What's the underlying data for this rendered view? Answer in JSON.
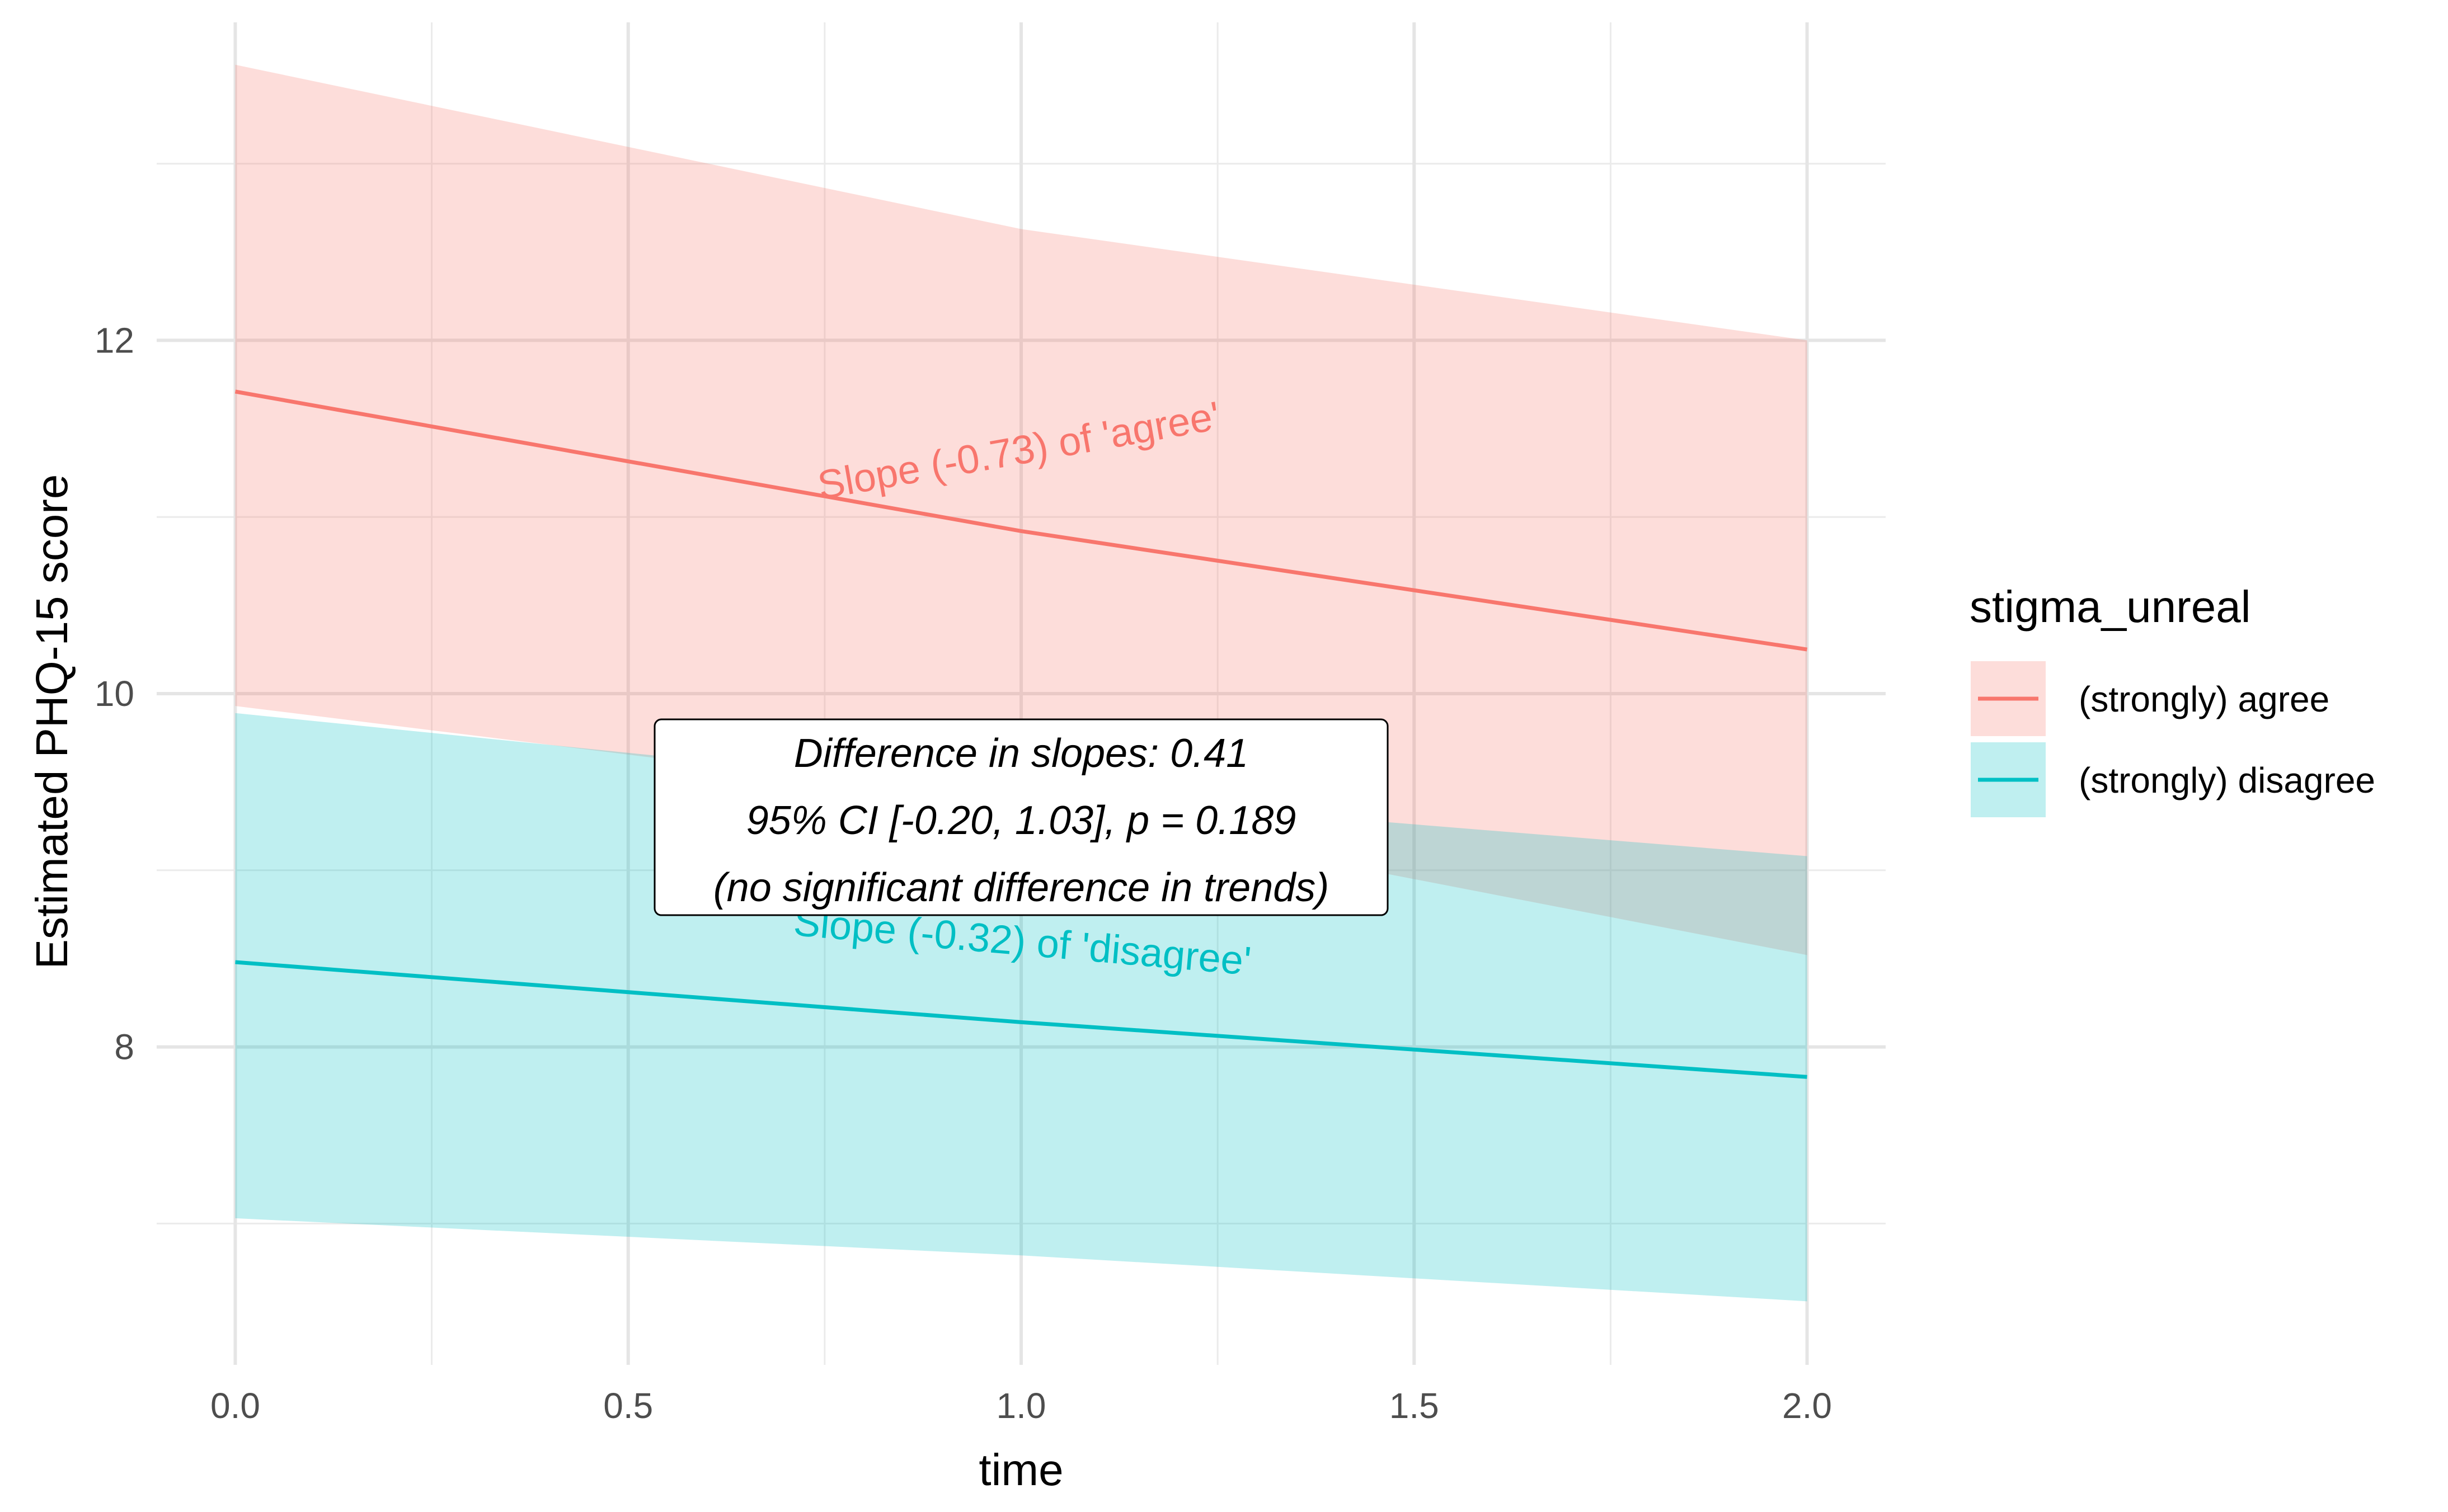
{
  "chart_data": {
    "type": "line",
    "xlabel": "time",
    "ylabel": "Estimated PHQ-15 score",
    "xlim": [
      -0.1,
      2.1
    ],
    "ylim": [
      6.2,
      13.8
    ],
    "x_ticks": [
      0.0,
      0.5,
      1.0,
      1.5,
      2.0
    ],
    "x_tick_labels": [
      "0.0",
      "0.5",
      "1.0",
      "1.5",
      "2.0"
    ],
    "y_ticks": [
      8,
      10,
      12
    ],
    "y_tick_labels": [
      "8",
      "10",
      "12"
    ],
    "grid": true,
    "legend": {
      "title": "stigma_unreal",
      "position": "right"
    },
    "series": [
      {
        "name": "(strongly) agree",
        "color": "#F8766D",
        "fill": "#F8766D",
        "x": [
          0,
          1,
          2
        ],
        "y": [
          11.71,
          10.92,
          10.25
        ],
        "ci_lower": [
          9.93,
          9.38,
          8.52
        ],
        "ci_upper": [
          13.56,
          12.63,
          12.0
        ]
      },
      {
        "name": "(strongly) disagree",
        "color": "#00BFC4",
        "fill": "#00BFC4",
        "x": [
          0,
          1,
          2
        ],
        "y": [
          8.48,
          8.14,
          7.83
        ],
        "ci_lower": [
          7.03,
          6.82,
          6.56
        ],
        "ci_upper": [
          9.89,
          9.44,
          9.08
        ]
      }
    ],
    "annotations": {
      "agree_slope": {
        "text": "Slope (-0.73) of 'agree'",
        "color": "#F8766D",
        "x": 1.0,
        "y": 11.3,
        "angle": -10
      },
      "disagree_slope": {
        "text": "Slope (-0.32) of 'disagree'",
        "color": "#00BFC4",
        "x": 1.0,
        "y": 8.52,
        "angle": 5
      },
      "box": {
        "lines": [
          "Difference in slopes: 0.41",
          "95% CI [-0.20, 1.03], p = 0.189",
          "(no significant difference in trends)"
        ],
        "x": 1.0,
        "y": 9.3
      }
    }
  }
}
